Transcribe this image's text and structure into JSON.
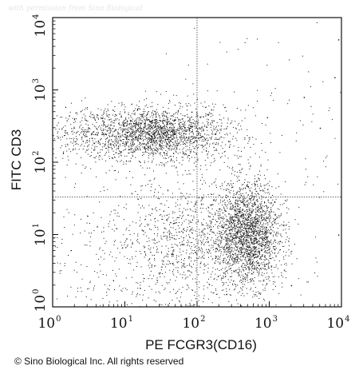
{
  "watermark": "with permission from Sino Biological",
  "copyright": "© Sino Biological Inc. All rights reserved",
  "chart_data": {
    "type": "scatter",
    "title": "",
    "xlabel": "PE FCGR3(CD16)",
    "ylabel": "FITC CD3",
    "xscale": "log",
    "yscale": "log",
    "xlim": [
      1,
      10000
    ],
    "ylim": [
      1,
      10000
    ],
    "x_ticks": [
      {
        "base": "10",
        "exp": "0"
      },
      {
        "base": "10",
        "exp": "1"
      },
      {
        "base": "10",
        "exp": "2"
      },
      {
        "base": "10",
        "exp": "3"
      },
      {
        "base": "10",
        "exp": "4"
      }
    ],
    "y_ticks": [
      {
        "base": "10",
        "exp": "0"
      },
      {
        "base": "10",
        "exp": "1"
      },
      {
        "base": "10",
        "exp": "2"
      },
      {
        "base": "10",
        "exp": "3"
      },
      {
        "base": "10",
        "exp": "4"
      }
    ],
    "quadrant_gates": {
      "x": 100,
      "y": 33
    },
    "grid": false,
    "point_color": "#111111",
    "populations": [
      {
        "center": [
          30,
          250
        ],
        "spread_decades": [
          0.45,
          0.18
        ],
        "events": 1600
      },
      {
        "center": [
          5,
          250
        ],
        "spread_decades": [
          0.5,
          0.2
        ],
        "events": 600
      },
      {
        "center": [
          500,
          10
        ],
        "spread_decades": [
          0.22,
          0.35
        ],
        "events": 2000
      },
      {
        "center": [
          100,
          10
        ],
        "spread_decades": [
          0.6,
          0.4
        ],
        "events": 900
      },
      {
        "center": [
          20,
          3
        ],
        "spread_decades": [
          0.9,
          0.5
        ],
        "events": 500
      },
      {
        "center": [
          300,
          200
        ],
        "spread_decades": [
          0.8,
          0.6
        ],
        "events": 250
      }
    ],
    "outliers": [
      [
        9000,
        5000
      ],
      [
        3000,
        800
      ],
      [
        5000,
        300
      ],
      [
        8000,
        1500
      ],
      [
        2000,
        2
      ],
      [
        9000,
        10
      ]
    ]
  }
}
